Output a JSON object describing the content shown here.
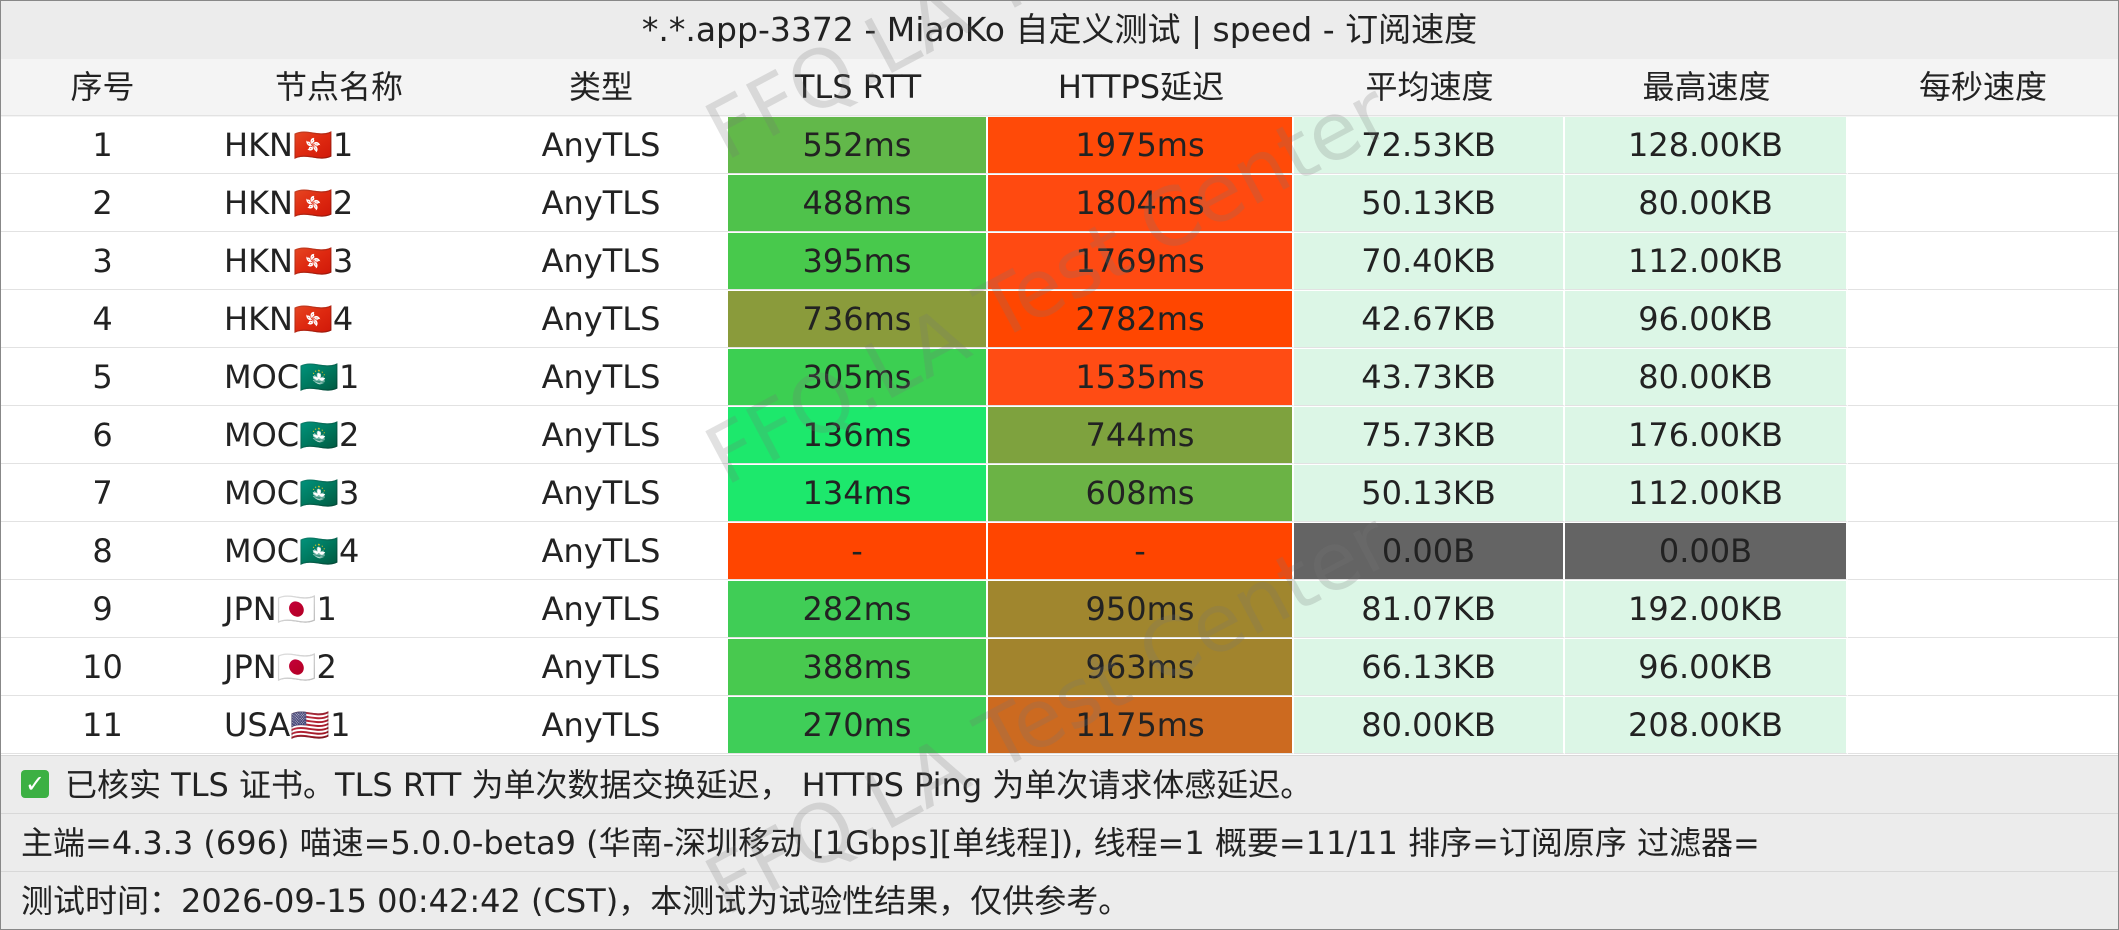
{
  "title": "*.*.app-3372 - MiaoKo 自定义测试 | speed - 订阅速度",
  "header": [
    "序号",
    "节点名称",
    "类型",
    "TLS RTT",
    "HTTPS延迟",
    "平均速度",
    "最高速度",
    "每秒速度"
  ],
  "rows": [
    [
      "1",
      "HKN🇭🇰1",
      "AnyTLS",
      "552ms",
      "1975ms",
      "72.53KB",
      "128.00KB"
    ],
    [
      "2",
      "HKN🇭🇰2",
      "AnyTLS",
      "488ms",
      "1804ms",
      "50.13KB",
      "80.00KB"
    ],
    [
      "3",
      "HKN🇭🇰3",
      "AnyTLS",
      "395ms",
      "1769ms",
      "70.40KB",
      "112.00KB"
    ],
    [
      "4",
      "HKN🇭🇰4",
      "AnyTLS",
      "736ms",
      "2782ms",
      "42.67KB",
      "96.00KB"
    ],
    [
      "5",
      "MOC🇲🇴1",
      "AnyTLS",
      "305ms",
      "1535ms",
      "43.73KB",
      "80.00KB"
    ],
    [
      "6",
      "MOC🇲🇴2",
      "AnyTLS",
      "136ms",
      "744ms",
      "75.73KB",
      "176.00KB"
    ],
    [
      "7",
      "MOC🇲🇴3",
      "AnyTLS",
      "134ms",
      "608ms",
      "50.13KB",
      "112.00KB"
    ],
    [
      "8",
      "MOC🇲🇴4",
      "AnyTLS",
      "-",
      "-",
      "0.00B",
      "0.00B"
    ],
    [
      "9",
      "JPN🇯🇵1",
      "AnyTLS",
      "282ms",
      "950ms",
      "81.07KB",
      "192.00KB"
    ],
    [
      "10",
      "JPN🇯🇵2",
      "AnyTLS",
      "388ms",
      "963ms",
      "66.13KB",
      "96.00KB"
    ],
    [
      "11",
      "USA🇺🇸1",
      "AnyTLS",
      "270ms",
      "1175ms",
      "80.00KB",
      "208.00KB"
    ]
  ],
  "cell_colors": [
    [
      "#62b84a",
      "#ff4a08",
      "#dcf6e6",
      "#dcf6e6"
    ],
    [
      "#4fc24b",
      "#ff4a10",
      "#dcf6e6",
      "#dcf6e6"
    ],
    [
      "#48c94c",
      "#ff4a12",
      "#dcf6e6",
      "#dcf6e6"
    ],
    [
      "#8a9b3b",
      "#ff4600",
      "#dcf6e6",
      "#dcf6e6"
    ],
    [
      "#3ccf52",
      "#ff4c14",
      "#dcf6e6",
      "#dcf6e6"
    ],
    [
      "#1de86c",
      "#7ea23e",
      "#dcf6e6",
      "#dcf6e6"
    ],
    [
      "#1de86c",
      "#6bb345",
      "#dcf6e6",
      "#dcf6e6"
    ],
    [
      "#ff4500",
      "#ff4500",
      "#646464",
      "#646464"
    ],
    [
      "#40cd56",
      "#a0862e",
      "#dcf6e6",
      "#dcf6e6"
    ],
    [
      "#48c94f",
      "#a2842d",
      "#dcf6e6",
      "#dcf6e6"
    ],
    [
      "#3fce58",
      "#cc6a20",
      "#dcf6e6",
      "#dcf6e6"
    ]
  ],
  "notes": [
    "已核实 TLS 证书。TLS RTT 为单次数据交换延迟， HTTPS Ping 为单次请求体感延迟。",
    "主端=4.3.3 (696) 喵速=5.0.0-beta9 (华南-深圳移动 [1Gbps][单线程]), 线程=1 概要=11/11 排序=订阅原序 过滤器=",
    "测试时间：2026-09-15 00:42:42 (CST)，本测试为试验性结果，仅供参考。"
  ],
  "watermark": "FFQ.LA Test Center"
}
